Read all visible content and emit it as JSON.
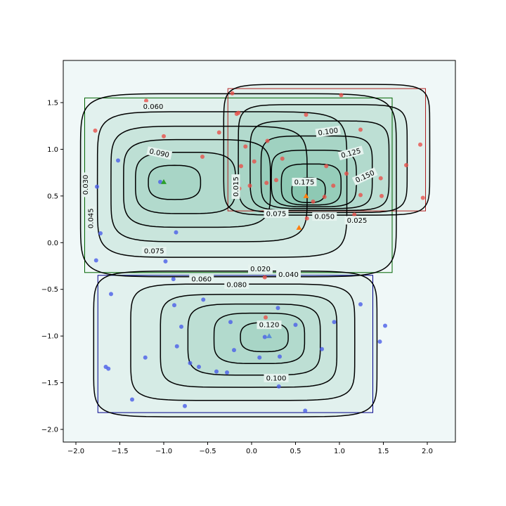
{
  "chart_data": {
    "type": "contour",
    "title": "",
    "xlabel": "",
    "ylabel": "",
    "xlim": [
      -2.2,
      2.3
    ],
    "ylim": [
      -2.15,
      1.95
    ],
    "xticks": [
      -2.0,
      -1.5,
      -1.0,
      -0.5,
      0.0,
      0.5,
      1.0,
      1.5,
      2.0
    ],
    "xtick_labels": [
      "−2.0",
      "−1.5",
      "−1.0",
      "−0.5",
      "0.0",
      "0.5",
      "1.0",
      "1.5",
      "2.0"
    ],
    "yticks": [
      -2.0,
      -1.5,
      -1.0,
      -0.5,
      0.0,
      0.5,
      1.0,
      1.5
    ],
    "ytick_labels": [
      "−2.0",
      "−1.5",
      "−1.0",
      "−0.5",
      "0.0",
      "0.5",
      "1.0",
      "1.5"
    ],
    "background": "#f0f8f8",
    "colors": {
      "red": "#e8504a",
      "blue": "#4a5ee8",
      "contour": "#000000",
      "fill": "#2e9a78"
    },
    "clusters": [
      {
        "color": "green",
        "box_color": "#006400",
        "box": [
          -1.9,
          1.6,
          -0.32,
          1.55
        ],
        "center": [
          -1.0,
          0.65
        ],
        "marker": "triangle",
        "marker_color": "#2ca02c",
        "levels": [
          0.015,
          0.03,
          0.045,
          0.06,
          0.075,
          0.09
        ],
        "labels": [
          {
            "text": "0.060",
            "x": -1.12,
            "y": 1.46,
            "rot": 0
          },
          {
            "text": "0.090",
            "x": -1.05,
            "y": 0.96,
            "rot": 12
          },
          {
            "text": "0.030",
            "x": -1.89,
            "y": 0.62,
            "rot": -90
          },
          {
            "text": "0.045",
            "x": -1.83,
            "y": 0.26,
            "rot": -90
          },
          {
            "text": "0.075",
            "x": -1.11,
            "y": -0.09,
            "rot": 0
          }
        ]
      },
      {
        "color": "red",
        "box_color": "#b22222",
        "box": [
          -0.27,
          1.98,
          0.34,
          1.65
        ],
        "center": [
          0.62,
          0.5
        ],
        "marker": "triangle",
        "marker_color": "#ff7f0e",
        "levels": [
          0.025,
          0.05,
          0.075,
          0.1,
          0.125,
          0.15,
          0.175
        ],
        "labels": [
          {
            "text": "0.100",
            "x": 0.87,
            "y": 1.19,
            "rot": -8
          },
          {
            "text": "0.125",
            "x": 1.13,
            "y": 0.96,
            "rot": -15
          },
          {
            "text": "0.150",
            "x": 1.29,
            "y": 0.71,
            "rot": -25
          },
          {
            "text": "0.175",
            "x": 0.6,
            "y": 0.65,
            "rot": 0
          },
          {
            "text": "0.075",
            "x": 0.28,
            "y": 0.31,
            "rot": 0
          },
          {
            "text": "0.050",
            "x": 0.83,
            "y": 0.28,
            "rot": 0
          },
          {
            "text": "0.025",
            "x": 1.2,
            "y": 0.24,
            "rot": 0
          },
          {
            "text": "0.015",
            "x": -0.18,
            "y": 0.6,
            "rot": -90
          }
        ]
      },
      {
        "color": "blue",
        "box_color": "#00008b",
        "box": [
          -1.75,
          1.38,
          -1.82,
          -0.35
        ],
        "center": [
          0.2,
          -1.0
        ],
        "marker": "triangle",
        "marker_color": "#5a8ed8",
        "levels": [
          0.02,
          0.04,
          0.06,
          0.08,
          0.1,
          0.12
        ],
        "labels": [
          {
            "text": "0.020",
            "x": 0.1,
            "y": -0.28,
            "rot": 0
          },
          {
            "text": "0.040",
            "x": 0.42,
            "y": -0.34,
            "rot": 0
          },
          {
            "text": "0.060",
            "x": -0.57,
            "y": -0.39,
            "rot": 0
          },
          {
            "text": "0.080",
            "x": -0.17,
            "y": -0.45,
            "rot": 0
          },
          {
            "text": "0.120",
            "x": 0.2,
            "y": -0.88,
            "rot": 0
          },
          {
            "text": "0.100",
            "x": 0.28,
            "y": -1.45,
            "rot": 0
          }
        ]
      }
    ],
    "points_red": [
      [
        -1.2,
        1.52
      ],
      [
        -1.78,
        1.2
      ],
      [
        -1.0,
        1.14
      ],
      [
        -0.37,
        1.18
      ],
      [
        -0.56,
        0.92
      ],
      [
        -0.22,
        1.6
      ],
      [
        -0.15,
        1.39
      ],
      [
        -0.17,
        1.38
      ],
      [
        -0.07,
        1.03
      ],
      [
        -0.12,
        0.82
      ],
      [
        -0.02,
        0.61
      ],
      [
        -0.14,
        0.58
      ],
      [
        0.18,
        1.09
      ],
      [
        0.03,
        0.87
      ],
      [
        0.35,
        0.9
      ],
      [
        0.62,
        1.37
      ],
      [
        1.02,
        1.58
      ],
      [
        1.24,
        1.21
      ],
      [
        1.18,
        0.98
      ],
      [
        0.85,
        0.82
      ],
      [
        1.08,
        0.74
      ],
      [
        0.17,
        0.64
      ],
      [
        0.28,
        0.67
      ],
      [
        0.7,
        0.65
      ],
      [
        0.93,
        0.61
      ],
      [
        0.83,
        0.49
      ],
      [
        0.7,
        0.44
      ],
      [
        1.24,
        0.51
      ],
      [
        1.48,
        0.5
      ],
      [
        1.47,
        0.69
      ],
      [
        1.76,
        0.83
      ],
      [
        1.92,
        1.05
      ],
      [
        1.95,
        0.48
      ],
      [
        0.63,
        0.26
      ],
      [
        1.17,
        0.3
      ],
      [
        0.16,
        -0.8
      ],
      [
        0.15,
        -0.37
      ]
    ],
    "points_blue": [
      [
        -1.52,
        0.88
      ],
      [
        -1.76,
        0.6
      ],
      [
        -1.72,
        0.1
      ],
      [
        -1.77,
        -0.19
      ],
      [
        -0.86,
        0.11
      ],
      [
        -1.04,
        0.65
      ],
      [
        -1.21,
        -0.1
      ],
      [
        -0.98,
        -0.2
      ],
      [
        -0.89,
        -0.39
      ],
      [
        -0.55,
        -0.61
      ],
      [
        -0.88,
        -0.67
      ],
      [
        -0.8,
        -0.9
      ],
      [
        -0.85,
        -1.11
      ],
      [
        -1.21,
        -1.23
      ],
      [
        -1.6,
        -0.55
      ],
      [
        -1.66,
        -1.33
      ],
      [
        -1.63,
        -1.35
      ],
      [
        -1.36,
        -1.68
      ],
      [
        -0.7,
        -1.29
      ],
      [
        -0.6,
        -1.33
      ],
      [
        -0.4,
        -1.38
      ],
      [
        -0.28,
        -1.39
      ],
      [
        -0.24,
        -0.85
      ],
      [
        -0.2,
        -1.15
      ],
      [
        -0.76,
        -1.75
      ],
      [
        0.09,
        -1.23
      ],
      [
        0.15,
        -1.01
      ],
      [
        0.32,
        -1.22
      ],
      [
        0.3,
        -0.7
      ],
      [
        0.5,
        -0.88
      ],
      [
        0.31,
        -1.54
      ],
      [
        0.8,
        -1.14
      ],
      [
        0.94,
        -0.85
      ],
      [
        1.24,
        -0.66
      ],
      [
        1.46,
        -1.06
      ],
      [
        1.52,
        -0.89
      ],
      [
        0.61,
        -1.8
      ]
    ]
  }
}
